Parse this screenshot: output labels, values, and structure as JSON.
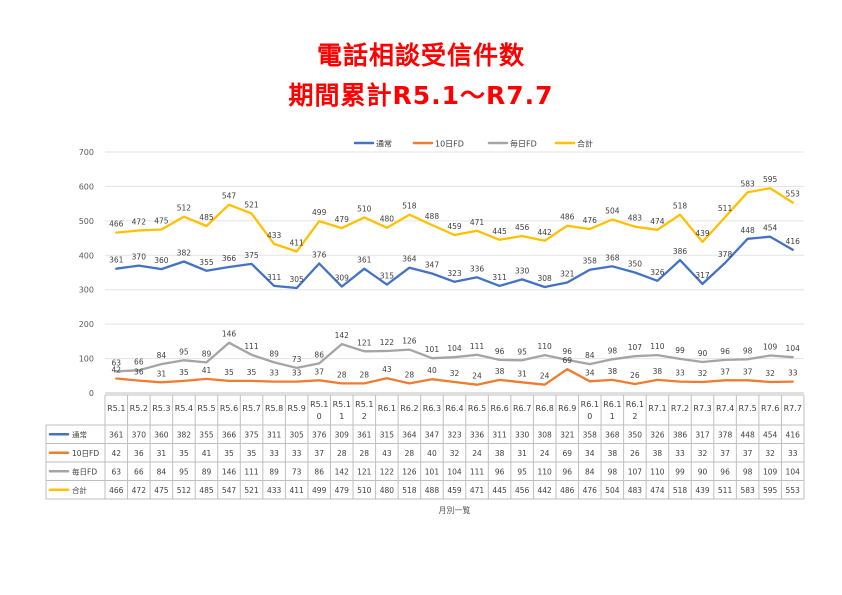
{
  "header": {
    "title_line1": "電話相談受信件数",
    "title_line2": "期間累計R5.1～R7.7"
  },
  "chart_data": {
    "type": "line",
    "title": "電話相談受信件数 期間累計R5.1～R7.7",
    "xlabel": "月別一覧",
    "ylabel": "",
    "ylim": [
      0,
      700
    ],
    "yticks": [
      0,
      100,
      200,
      300,
      400,
      500,
      600,
      700
    ],
    "grid": true,
    "legend_position": "top",
    "categories": [
      "R5.1",
      "R5.2",
      "R5.3",
      "R5.4",
      "R5.5",
      "R5.6",
      "R5.7",
      "R5.8",
      "R5.9",
      "R5.10",
      "R5.11",
      "R5.12",
      "R6.1",
      "R6.2",
      "R6.3",
      "R6.4",
      "R6.5",
      "R6.6",
      "R6.7",
      "R6.8",
      "R6.9",
      "R6.10",
      "R6.11",
      "R6.12",
      "R7.1",
      "R7.2",
      "R7.3",
      "R7.4",
      "R7.5",
      "R7.6",
      "R7.7"
    ],
    "series": [
      {
        "name": "通常",
        "color": "#4472c4",
        "values": [
          361,
          370,
          360,
          382,
          355,
          366,
          375,
          311,
          305,
          376,
          309,
          361,
          315,
          364,
          347,
          323,
          336,
          311,
          330,
          308,
          321,
          358,
          368,
          350,
          326,
          386,
          317,
          378,
          448,
          454,
          416
        ]
      },
      {
        "name": "10日FD",
        "color": "#ed7d31",
        "values": [
          42,
          36,
          31,
          35,
          41,
          35,
          35,
          33,
          33,
          37,
          28,
          28,
          43,
          28,
          40,
          32,
          24,
          38,
          31,
          24,
          69,
          34,
          38,
          26,
          38,
          33,
          32,
          37,
          37,
          32,
          33
        ]
      },
      {
        "name": "毎日FD",
        "color": "#a5a5a5",
        "values": [
          63,
          66,
          84,
          95,
          89,
          146,
          111,
          89,
          73,
          86,
          142,
          121,
          122,
          126,
          101,
          104,
          111,
          96,
          95,
          110,
          96,
          84,
          98,
          107,
          110,
          99,
          90,
          96,
          98,
          109,
          104
        ]
      },
      {
        "name": "合計",
        "color": "#ffc000",
        "values": [
          466,
          472,
          475,
          512,
          485,
          547,
          521,
          433,
          411,
          499,
          479,
          510,
          480,
          518,
          488,
          459,
          471,
          445,
          456,
          442,
          486,
          476,
          504,
          483,
          474,
          518,
          439,
          511,
          583,
          595,
          553
        ]
      }
    ]
  }
}
